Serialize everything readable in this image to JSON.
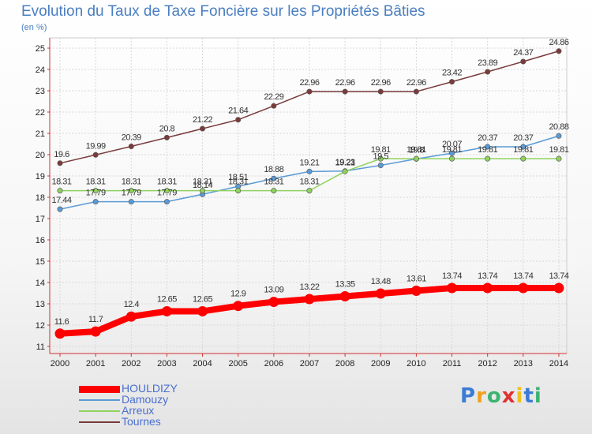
{
  "chart_data": {
    "type": "line",
    "title": "Evolution du Taux de Taxe Foncière sur les Propriétés Bâties",
    "ylabel": "(en %)",
    "xlabel": "",
    "x": [
      "2000",
      "2001",
      "2002",
      "2003",
      "2004",
      "2005",
      "2006",
      "2007",
      "2008",
      "2009",
      "2010",
      "2011",
      "2012",
      "2013",
      "2014"
    ],
    "y_ticks": [
      "11",
      "12",
      "13",
      "14",
      "15",
      "16",
      "17",
      "18",
      "19",
      "20",
      "21",
      "22",
      "23",
      "24",
      "25"
    ],
    "ylim": [
      11,
      25
    ],
    "series": [
      {
        "name": "Tournes",
        "color": "#7a3b3b",
        "values": [
          19.6,
          19.99,
          20.39,
          20.8,
          21.22,
          21.64,
          22.29,
          22.96,
          22.96,
          22.96,
          22.96,
          23.42,
          23.89,
          24.37,
          24.86
        ],
        "labels": [
          "19.6",
          "19.99",
          "20.39",
          "20.8",
          "21.22",
          "21.64",
          "22.29",
          "22.96",
          "22.96",
          "22.96",
          "22.96",
          "23.42",
          "23.89",
          "24.37",
          "24.86"
        ]
      },
      {
        "name": "Damouzy",
        "color": "#5b9bd5",
        "values": [
          17.44,
          17.79,
          17.79,
          17.79,
          18.14,
          18.51,
          18.88,
          19.21,
          19.23,
          19.5,
          19.8,
          20.07,
          20.37,
          20.37,
          20.88
        ],
        "labels": [
          "17.44",
          "17.79",
          "17.79",
          "17.79",
          "18.14",
          "18.51",
          "18.88",
          "19.21",
          "19.23",
          "19.5",
          "19.8",
          "20.07",
          "20.37",
          "20.37",
          "20.88"
        ]
      },
      {
        "name": "Arreux",
        "color": "#8fd25e",
        "values": [
          18.31,
          18.31,
          18.31,
          18.31,
          18.31,
          18.31,
          18.31,
          18.31,
          19.21,
          19.81,
          19.81,
          19.81,
          19.81,
          19.81,
          19.81
        ],
        "labels": [
          "18.31",
          "18.31",
          "18.31",
          "18.31",
          "18.31",
          "18.31",
          "18.31",
          "18.31",
          "19.21",
          "19.81",
          "19.81",
          "19.81",
          "19.81",
          "19.81",
          "19.81"
        ]
      },
      {
        "name": "HOULDIZY",
        "color": "#ff0000",
        "values": [
          11.6,
          11.7,
          12.4,
          12.65,
          12.65,
          12.9,
          13.09,
          13.22,
          13.35,
          13.48,
          13.61,
          13.74,
          13.74,
          13.74,
          13.74
        ],
        "labels": [
          "11.6",
          "11.7",
          "12.4",
          "12.65",
          "12.65",
          "12.9",
          "13.09",
          "13.22",
          "13.35",
          "13.48",
          "13.61",
          "13.74",
          "13.74",
          "13.74",
          "13.74"
        ]
      }
    ]
  },
  "legend": {
    "items": [
      {
        "label": "HOULDIZY",
        "color": "#ff0000",
        "thick": true
      },
      {
        "label": "Damouzy",
        "color": "#5b9bd5",
        "thick": false
      },
      {
        "label": "Arreux",
        "color": "#8fd25e",
        "thick": false
      },
      {
        "label": "Tournes",
        "color": "#7a3b3b",
        "thick": false
      }
    ]
  },
  "brand": {
    "letters": [
      "P",
      "r",
      "o",
      "x",
      "i",
      "t",
      "i"
    ],
    "colors": [
      "#3a7bd5",
      "#f0a020",
      "#3cb371",
      "#e03030",
      "#f0c020",
      "#3a7bd5",
      "#3cb371"
    ]
  }
}
